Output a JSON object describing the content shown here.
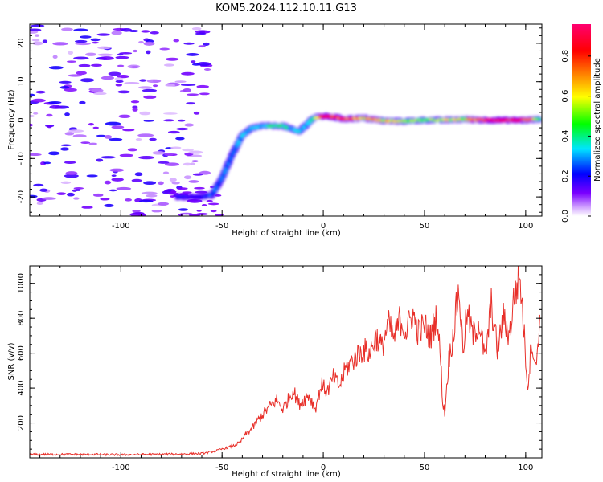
{
  "figure": {
    "title": "KOM5.2024.112.10.11.G13"
  },
  "chart_data": [
    {
      "type": "heatmap",
      "title": "KOM5.2024.112.10.11.G13",
      "xlabel": "Height of straight line (km)",
      "ylabel": "Frequency (Hz)",
      "xlim": [
        -145,
        108
      ],
      "ylim": [
        -25,
        25
      ],
      "xticks": [
        -100,
        -50,
        0,
        50,
        100
      ],
      "yticks": [
        -20,
        -10,
        0,
        10,
        20
      ],
      "x_tick_labels": [
        "-100",
        "-50",
        "0",
        "50",
        "100"
      ],
      "y_tick_labels": [
        "-20",
        "-10",
        "0",
        "10",
        "20"
      ],
      "grid": false,
      "colorbar": {
        "label": "Normalized spectral amplitude",
        "range": [
          0,
          0.96
        ],
        "ticks": [
          0.0,
          0.2,
          0.4,
          0.6,
          0.8
        ],
        "tick_labels": [
          "0.0",
          "0.2",
          "0.4",
          "0.6",
          "0.8"
        ],
        "colormap": "rainbow (purple-blue-cyan-green-yellow-orange-red-magenta)",
        "colors": [
          "#ffffff",
          "#7a00ff",
          "#0000ff",
          "#00e5ff",
          "#00ff00",
          "#ffff00",
          "#ff8000",
          "#ff0000",
          "#ff0070"
        ]
      },
      "signal_track": {
        "description_points_x_km": [
          -72,
          -60,
          -55,
          -50,
          -45,
          -40,
          -35,
          -30,
          -25,
          -20,
          -15,
          -12,
          -8,
          -5,
          0,
          5,
          10,
          20,
          30,
          40,
          50,
          60,
          70,
          80,
          90,
          100,
          107
        ],
        "frequency_hz": [
          -20,
          -20,
          -19.5,
          -15,
          -9,
          -4,
          -2,
          -1.5,
          -1.5,
          -1.5,
          -2.5,
          -3,
          -1,
          0.5,
          1,
          0.8,
          0.3,
          0.5,
          -0.2,
          -0.3,
          0,
          0,
          0.2,
          0,
          0,
          0,
          0.2
        ],
        "amplitude": [
          0.2,
          0.2,
          0.25,
          0.25,
          0.25,
          0.3,
          0.3,
          0.35,
          0.45,
          0.4,
          0.3,
          0.3,
          0.3,
          0.4,
          0.8,
          0.8,
          0.85,
          0.65,
          0.6,
          0.55,
          0.5,
          0.55,
          0.6,
          0.85,
          0.85,
          0.85,
          0.4
        ]
      },
      "noise_region": {
        "x_range_km": [
          -145,
          -57
        ],
        "freq_range_hz": [
          -25,
          25
        ],
        "amplitude": 0.1
      }
    },
    {
      "type": "line",
      "xlabel": "Height of straight line (km)",
      "ylabel": "SNR (v/v)",
      "xlim": [
        -145,
        108
      ],
      "ylim": [
        0,
        1100
      ],
      "xticks": [
        -100,
        -50,
        0,
        50,
        100
      ],
      "yticks": [
        200,
        400,
        600,
        800,
        1000
      ],
      "x_tick_labels": [
        "-100",
        "-50",
        "0",
        "50",
        "100"
      ],
      "y_tick_labels": [
        "200",
        "400",
        "600",
        "800",
        "1000"
      ],
      "grid": false,
      "line_color": "#e8302a",
      "series": [
        {
          "x": [
            -145,
            -130,
            -115,
            -100,
            -85,
            -70,
            -60,
            -55,
            -50,
            -47,
            -44,
            -41,
            -38,
            -35,
            -32,
            -29,
            -26,
            -23,
            -20,
            -17,
            -15,
            -12,
            -10,
            -7,
            -4,
            -1,
            2,
            5,
            8,
            11,
            14,
            17,
            20,
            23,
            26,
            29,
            32,
            35,
            38,
            41,
            44,
            47,
            50,
            53,
            56,
            58,
            59,
            60,
            62,
            64,
            66,
            67,
            69,
            71,
            74,
            77,
            80,
            83,
            86,
            89,
            92,
            94,
            96,
            97,
            99,
            101,
            103,
            105,
            107
          ],
          "y": [
            20,
            20,
            20,
            18,
            20,
            22,
            25,
            35,
            50,
            60,
            70,
            90,
            140,
            170,
            220,
            260,
            300,
            330,
            280,
            340,
            390,
            310,
            330,
            360,
            280,
            420,
            380,
            460,
            410,
            510,
            550,
            590,
            620,
            600,
            700,
            630,
            770,
            680,
            800,
            720,
            830,
            720,
            760,
            690,
            820,
            560,
            320,
            260,
            560,
            690,
            880,
            970,
            620,
            830,
            700,
            780,
            560,
            880,
            620,
            800,
            700,
            900,
            1000,
            1060,
            750,
            400,
            680,
            500,
            820
          ]
        }
      ]
    }
  ]
}
